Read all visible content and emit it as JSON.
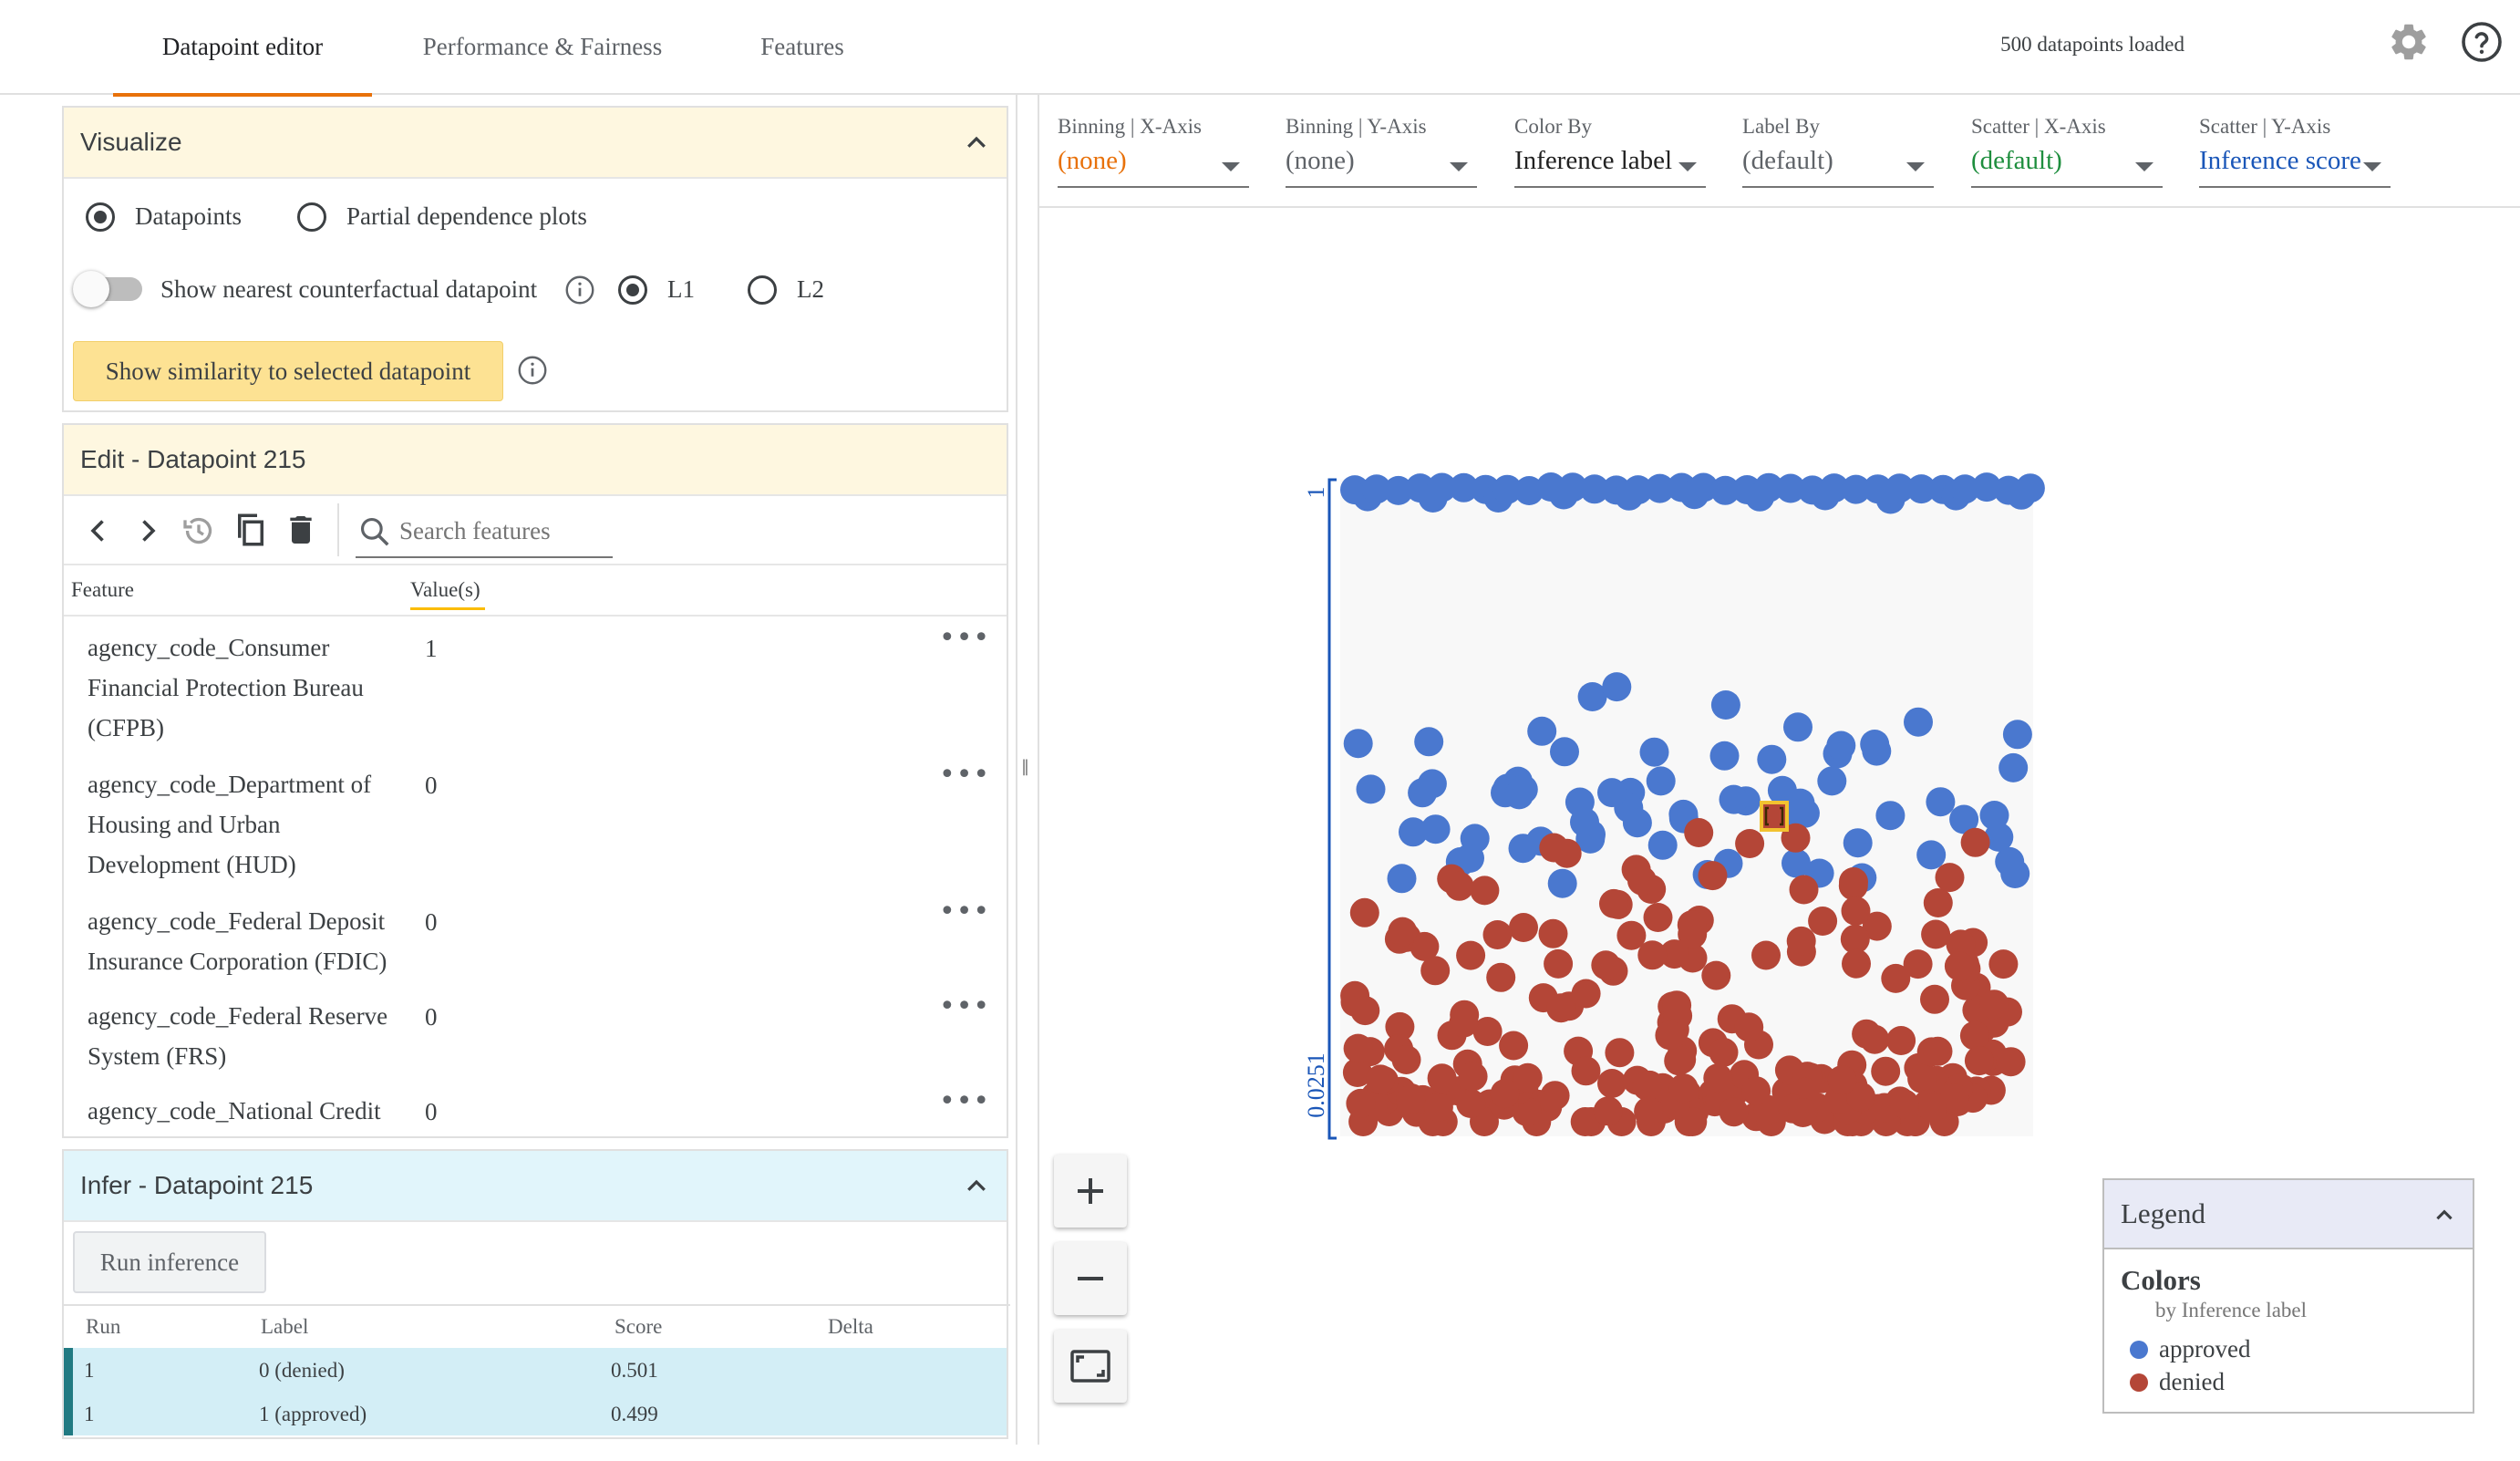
{
  "tabs": [
    {
      "label": "Datapoint editor"
    },
    {
      "label": "Performance & Fairness"
    },
    {
      "label": "Features"
    }
  ],
  "header": {
    "loaded": "500 datapoints loaded"
  },
  "visualize": {
    "title": "Visualize",
    "mode_datapoints": "Datapoints",
    "mode_pdp": "Partial dependence plots",
    "nearest_label": "Show nearest counterfactual datapoint",
    "l1": "L1",
    "l2": "L2",
    "similarity_button": "Show similarity to selected datapoint"
  },
  "edit": {
    "title": "Edit - Datapoint 215",
    "search_placeholder": "Search features",
    "col_feature": "Feature",
    "col_values": "Value(s)",
    "rows": [
      {
        "lines": [
          "agency_code_Consumer",
          "Financial Protection Bureau",
          "(CFPB)"
        ],
        "value": "1"
      },
      {
        "lines": [
          "agency_code_Department of",
          "Housing and Urban",
          "Development (HUD)"
        ],
        "value": "0"
      },
      {
        "lines": [
          "agency_code_Federal Deposit",
          "Insurance Corporation (FDIC)"
        ],
        "value": "0"
      },
      {
        "lines": [
          "agency_code_Federal Reserve",
          "System (FRS)"
        ],
        "value": "0"
      },
      {
        "lines": [
          "agency_code_National Credit"
        ],
        "value": "0"
      }
    ]
  },
  "infer": {
    "title": "Infer - Datapoint 215",
    "run_button": "Run inference",
    "columns": [
      "Run",
      "Label",
      "Score",
      "Delta"
    ],
    "rows": [
      {
        "run": "1",
        "label": "0 (denied)",
        "score": "0.501",
        "delta": ""
      },
      {
        "run": "1",
        "label": "1 (approved)",
        "score": "0.499",
        "delta": ""
      }
    ]
  },
  "controls": [
    {
      "label": "Binning | X-Axis",
      "value": "(none)",
      "color": "#e8710a"
    },
    {
      "label": "Binning | Y-Axis",
      "value": "(none)",
      "color": "#5f6368"
    },
    {
      "label": "Color By",
      "value": "Inference label",
      "color": "#212121"
    },
    {
      "label": "Label By",
      "value": "(default)",
      "color": "#5f6368"
    },
    {
      "label": "Scatter | X-Axis",
      "value": "(default)",
      "color": "#1e8e3e"
    },
    {
      "label": "Scatter | Y-Axis",
      "value": "Inference score",
      "color": "#1a56b8"
    }
  ],
  "plot": {
    "y_axis_top": "1",
    "y_axis_bottom": "0.0251",
    "colors": {
      "approved": "#4a78cf",
      "denied": "#b44637",
      "axis": "#1a56b8",
      "selected": "#f2c230"
    }
  },
  "legend": {
    "title": "Legend",
    "section": "Colors",
    "subtitle": "by Inference label",
    "items": [
      {
        "label": "approved",
        "color": "#4a78cf"
      },
      {
        "label": "denied",
        "color": "#b44637"
      }
    ]
  }
}
